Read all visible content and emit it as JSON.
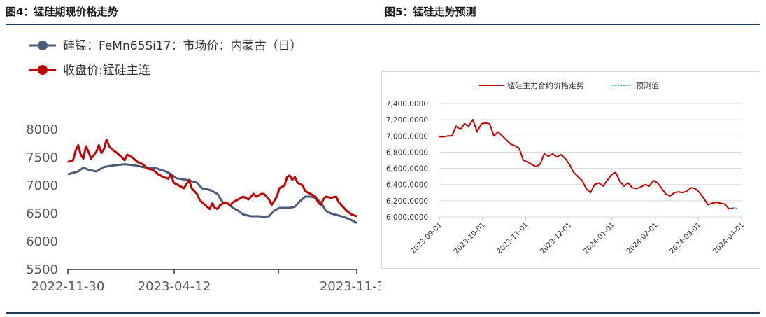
{
  "figures": [
    {
      "title": "图4：锰硅期现价格走势"
    },
    {
      "title": "图5：锰硅走势预测"
    }
  ],
  "chart_data": [
    {
      "type": "line",
      "title": "",
      "xlabel": "",
      "ylabel": "",
      "ylim": [
        5500,
        8000
      ],
      "yticks": [
        "8000",
        "7500",
        "7000",
        "6500",
        "6000",
        "5500"
      ],
      "xtick_labels": [
        "2022-11-30",
        "2023-04-12",
        "2023-11-3"
      ],
      "legend_position": "top-left",
      "grid": false,
      "series": [
        {
          "name": "硅锰：FeMn65Si17：市场价：内蒙古（日）",
          "color": "#4a5c78",
          "points": [
            [
              0,
              7200
            ],
            [
              0.04,
              7250
            ],
            [
              0.06,
              7320
            ],
            [
              0.08,
              7280
            ],
            [
              0.11,
              7250
            ],
            [
              0.14,
              7330
            ],
            [
              0.18,
              7360
            ],
            [
              0.22,
              7380
            ],
            [
              0.26,
              7360
            ],
            [
              0.3,
              7320
            ],
            [
              0.34,
              7310
            ],
            [
              0.38,
              7250
            ],
            [
              0.4,
              7200
            ],
            [
              0.42,
              7130
            ],
            [
              0.46,
              7100
            ],
            [
              0.5,
              7050
            ],
            [
              0.52,
              6950
            ],
            [
              0.55,
              6920
            ],
            [
              0.58,
              6850
            ],
            [
              0.6,
              6700
            ],
            [
              0.62,
              6680
            ],
            [
              0.64,
              6600
            ],
            [
              0.66,
              6550
            ],
            [
              0.68,
              6480
            ],
            [
              0.71,
              6450
            ],
            [
              0.74,
              6450
            ],
            [
              0.76,
              6440
            ],
            [
              0.78,
              6450
            ],
            [
              0.8,
              6550
            ],
            [
              0.82,
              6600
            ],
            [
              0.84,
              6600
            ],
            [
              0.86,
              6600
            ],
            [
              0.88,
              6620
            ],
            [
              0.9,
              6720
            ],
            [
              0.92,
              6800
            ],
            [
              0.94,
              6800
            ],
            [
              0.96,
              6780
            ],
            [
              0.98,
              6700
            ],
            [
              1.0,
              6550
            ],
            [
              1.02,
              6500
            ],
            [
              1.06,
              6450
            ],
            [
              1.08,
              6420
            ],
            [
              1.1,
              6380
            ],
            [
              1.12,
              6330
            ]
          ]
        },
        {
          "name": "收盘价:锰硅主连",
          "color": "#c00000",
          "points": [
            [
              0,
              7420
            ],
            [
              0.02,
              7450
            ],
            [
              0.03,
              7620
            ],
            [
              0.04,
              7720
            ],
            [
              0.05,
              7550
            ],
            [
              0.06,
              7480
            ],
            [
              0.07,
              7700
            ],
            [
              0.08,
              7600
            ],
            [
              0.09,
              7480
            ],
            [
              0.11,
              7600
            ],
            [
              0.12,
              7720
            ],
            [
              0.13,
              7580
            ],
            [
              0.14,
              7650
            ],
            [
              0.15,
              7820
            ],
            [
              0.16,
              7700
            ],
            [
              0.17,
              7650
            ],
            [
              0.19,
              7580
            ],
            [
              0.21,
              7500
            ],
            [
              0.22,
              7450
            ],
            [
              0.23,
              7550
            ],
            [
              0.25,
              7500
            ],
            [
              0.27,
              7420
            ],
            [
              0.29,
              7380
            ],
            [
              0.31,
              7300
            ],
            [
              0.33,
              7280
            ],
            [
              0.35,
              7200
            ],
            [
              0.37,
              7150
            ],
            [
              0.39,
              7120
            ],
            [
              0.4,
              7200
            ],
            [
              0.41,
              7050
            ],
            [
              0.43,
              7000
            ],
            [
              0.45,
              6950
            ],
            [
              0.47,
              7100
            ],
            [
              0.48,
              6950
            ],
            [
              0.5,
              6850
            ],
            [
              0.51,
              6750
            ],
            [
              0.52,
              6700
            ],
            [
              0.54,
              6620
            ],
            [
              0.55,
              6580
            ],
            [
              0.56,
              6680
            ],
            [
              0.57,
              6600
            ],
            [
              0.58,
              6580
            ],
            [
              0.59,
              6650
            ],
            [
              0.61,
              6700
            ],
            [
              0.63,
              6650
            ],
            [
              0.64,
              6700
            ],
            [
              0.66,
              6750
            ],
            [
              0.68,
              6800
            ],
            [
              0.7,
              6750
            ],
            [
              0.72,
              6850
            ],
            [
              0.73,
              6800
            ],
            [
              0.75,
              6850
            ],
            [
              0.76,
              6850
            ],
            [
              0.78,
              6750
            ],
            [
              0.79,
              6650
            ],
            [
              0.81,
              6800
            ],
            [
              0.82,
              6950
            ],
            [
              0.84,
              7000
            ],
            [
              0.85,
              7150
            ],
            [
              0.86,
              7180
            ],
            [
              0.87,
              7100
            ],
            [
              0.88,
              7150
            ],
            [
              0.89,
              7050
            ],
            [
              0.91,
              7000
            ],
            [
              0.92,
              6900
            ],
            [
              0.94,
              6850
            ],
            [
              0.96,
              6800
            ],
            [
              0.97,
              6700
            ],
            [
              0.98,
              6650
            ],
            [
              0.99,
              6750
            ],
            [
              1.0,
              6800
            ],
            [
              1.02,
              6780
            ],
            [
              1.04,
              6800
            ],
            [
              1.05,
              6700
            ],
            [
              1.06,
              6650
            ],
            [
              1.08,
              6550
            ],
            [
              1.1,
              6480
            ],
            [
              1.12,
              6450
            ]
          ]
        }
      ]
    },
    {
      "type": "line",
      "title": "",
      "xlabel": "",
      "ylabel": "",
      "ylim": [
        6000,
        7400
      ],
      "yticks": [
        "7,400.0000",
        "7,200.0000",
        "7,000.0000",
        "6,800.0000",
        "6,600.0000",
        "6,400.0000",
        "6,200.0000",
        "6,000.0000"
      ],
      "xtick_labels": [
        "2023-09-01",
        "2023-10-01",
        "2023-11-01",
        "2023-12-01",
        "2024-01-01",
        "2024-02-01",
        "2024-03-01",
        "2024-04-01"
      ],
      "legend_position": "top",
      "grid": true,
      "series": [
        {
          "name": "锰硅主力合约价格走势",
          "color": "#c00000",
          "points": [
            [
              0,
              6990
            ],
            [
              0.1,
              6990
            ],
            [
              0.2,
              7000
            ],
            [
              0.3,
              7000
            ],
            [
              0.4,
              7120
            ],
            [
              0.5,
              7080
            ],
            [
              0.6,
              7150
            ],
            [
              0.7,
              7120
            ],
            [
              0.8,
              7200
            ],
            [
              0.9,
              7050
            ],
            [
              1.0,
              7150
            ],
            [
              1.1,
              7160
            ],
            [
              1.2,
              7150
            ],
            [
              1.3,
              7000
            ],
            [
              1.4,
              7050
            ],
            [
              1.5,
              7000
            ],
            [
              1.6,
              6950
            ],
            [
              1.7,
              6900
            ],
            [
              1.8,
              6880
            ],
            [
              1.9,
              6850
            ],
            [
              2.0,
              6700
            ],
            [
              2.1,
              6680
            ],
            [
              2.2,
              6650
            ],
            [
              2.3,
              6620
            ],
            [
              2.4,
              6650
            ],
            [
              2.5,
              6780
            ],
            [
              2.6,
              6750
            ],
            [
              2.7,
              6780
            ],
            [
              2.8,
              6740
            ],
            [
              2.9,
              6770
            ],
            [
              3.0,
              6720
            ],
            [
              3.1,
              6650
            ],
            [
              3.2,
              6550
            ],
            [
              3.3,
              6500
            ],
            [
              3.4,
              6450
            ],
            [
              3.5,
              6350
            ],
            [
              3.6,
              6300
            ],
            [
              3.7,
              6400
            ],
            [
              3.8,
              6420
            ],
            [
              3.9,
              6380
            ],
            [
              4.0,
              6450
            ],
            [
              4.1,
              6520
            ],
            [
              4.2,
              6550
            ],
            [
              4.3,
              6440
            ],
            [
              4.4,
              6380
            ],
            [
              4.5,
              6420
            ],
            [
              4.6,
              6360
            ],
            [
              4.7,
              6350
            ],
            [
              4.8,
              6370
            ],
            [
              4.9,
              6400
            ],
            [
              5.0,
              6380
            ],
            [
              5.1,
              6450
            ],
            [
              5.2,
              6420
            ],
            [
              5.3,
              6350
            ],
            [
              5.4,
              6280
            ],
            [
              5.5,
              6260
            ],
            [
              5.6,
              6300
            ],
            [
              5.7,
              6310
            ],
            [
              5.8,
              6300
            ],
            [
              5.9,
              6320
            ],
            [
              6.0,
              6360
            ],
            [
              6.1,
              6350
            ],
            [
              6.2,
              6300
            ],
            [
              6.3,
              6230
            ],
            [
              6.4,
              6150
            ],
            [
              6.5,
              6170
            ],
            [
              6.6,
              6180
            ],
            [
              6.7,
              6170
            ],
            [
              6.8,
              6160
            ],
            [
              6.9,
              6100
            ],
            [
              7.0,
              6110
            ]
          ]
        },
        {
          "name": "预测值",
          "color": "#23b3e0",
          "dashed": true,
          "points": [
            [
              7.0,
              6110
            ],
            [
              7.05,
              6120
            ],
            [
              7.1,
              6090
            ]
          ]
        }
      ]
    }
  ]
}
